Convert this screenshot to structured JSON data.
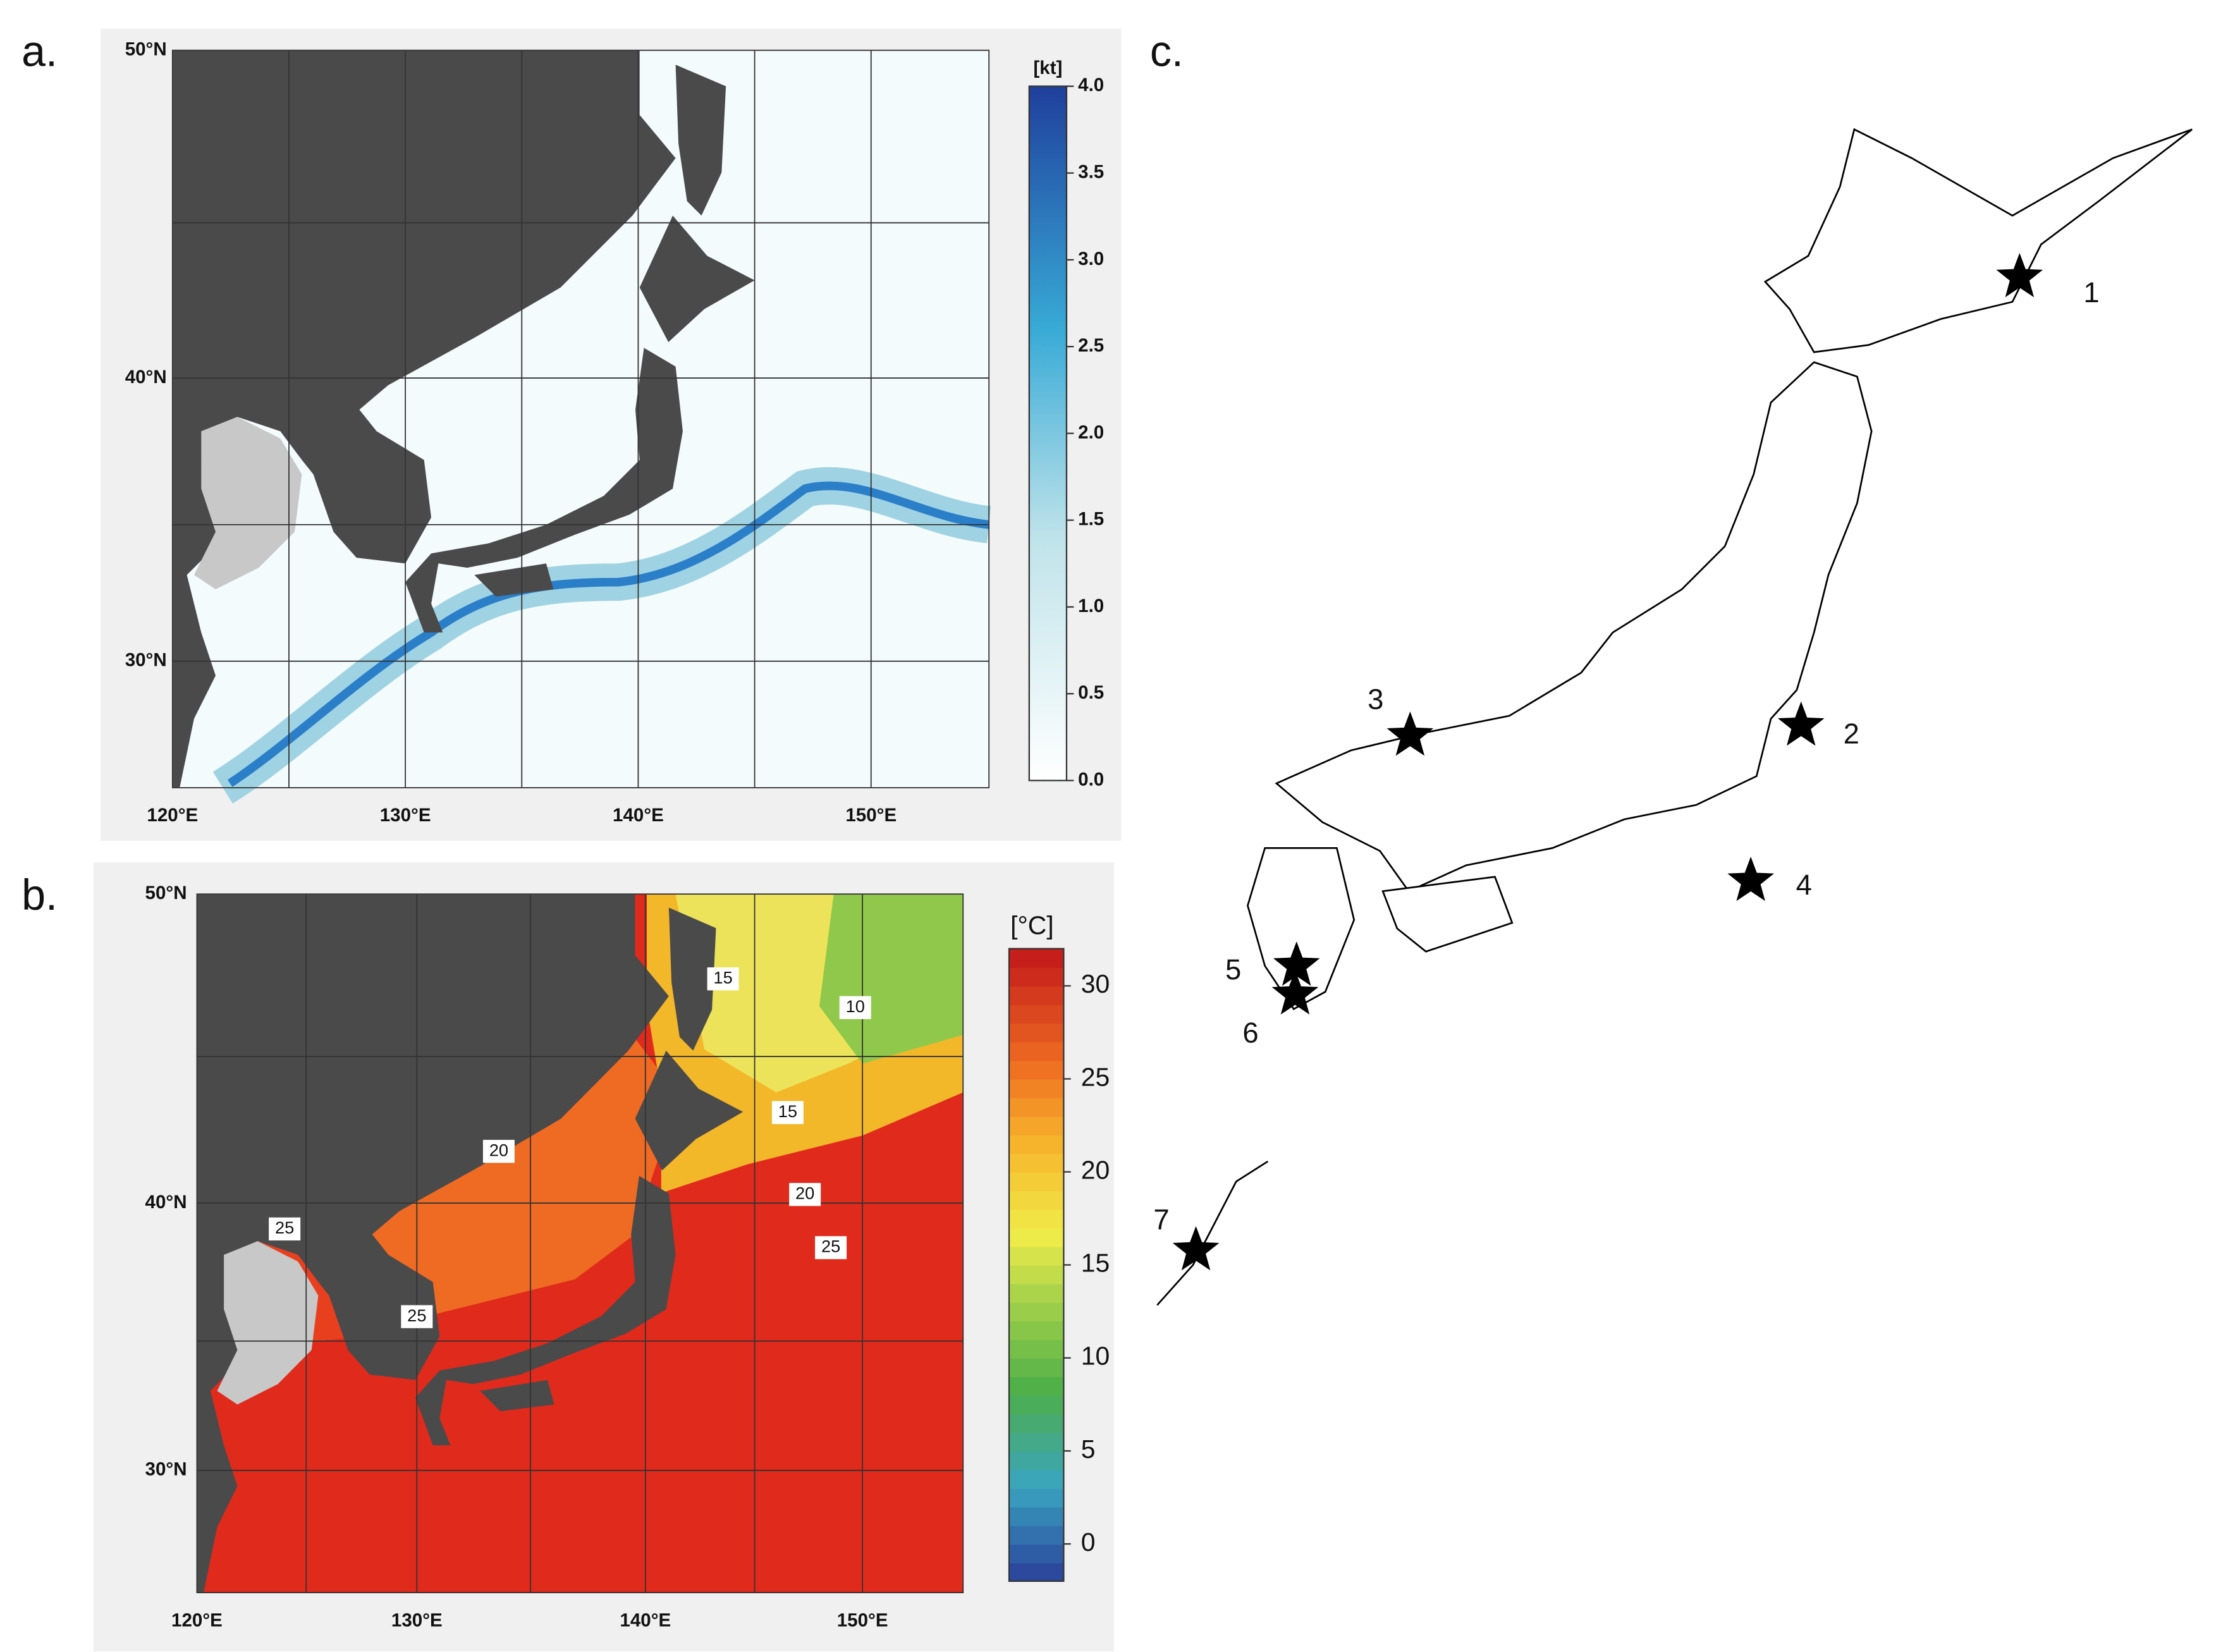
{
  "panel_a": {
    "label": "a.",
    "lat_ticks": [
      "50°N",
      "40°N",
      "30°N"
    ],
    "lon_ticks": [
      "120°E",
      "130°E",
      "140°E",
      "150°E"
    ],
    "colorbar_unit": "[kt]",
    "colorbar_lim": [
      0,
      4
    ],
    "colorbar_ticks": [
      {
        "value": 0,
        "label": "0.0"
      },
      {
        "value": 0.5,
        "label": "0.5"
      },
      {
        "value": 1,
        "label": "1.0"
      },
      {
        "value": 1.5,
        "label": "1.5"
      },
      {
        "value": 2,
        "label": "2.0"
      },
      {
        "value": 2.5,
        "label": "2.5"
      },
      {
        "value": 3,
        "label": "3.0"
      },
      {
        "value": 3.5,
        "label": "3.5"
      },
      {
        "value": 4,
        "label": "4.0"
      }
    ]
  },
  "panel_b": {
    "label": "b.",
    "lat_ticks": [
      "50°N",
      "40°N",
      "30°N"
    ],
    "lon_ticks": [
      "120°E",
      "130°E",
      "140°E",
      "150°E"
    ],
    "colorbar_unit": "[°C]",
    "colorbar_lim": [
      -2,
      32
    ],
    "colorbar_ticks": [
      0,
      5,
      10,
      15,
      20,
      25,
      30
    ],
    "contour_labels": [
      "15",
      "10",
      "15",
      "20",
      "20",
      "25",
      "25",
      "25"
    ]
  },
  "panel_c": {
    "label": "c.",
    "sites": [
      "1",
      "2",
      "3",
      "4",
      "5",
      "6",
      "7"
    ]
  }
}
